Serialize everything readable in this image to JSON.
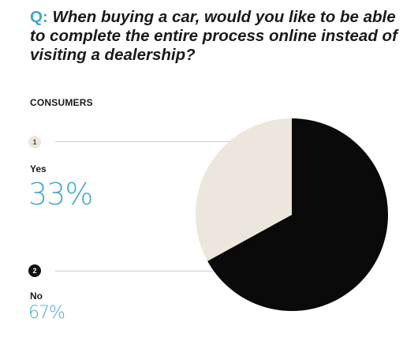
{
  "question": {
    "prefix": "Q:",
    "text": " When buying a car, would you like to be able to complete the entire process online instead of visiting a dealership?"
  },
  "section_label": "CONSUMERS",
  "colors": {
    "accent": "#3fa7c9",
    "yes": "#ece6dc",
    "no": "#0a0a0a"
  },
  "chart_data": {
    "type": "pie",
    "categories": [
      "Yes",
      "No"
    ],
    "values": [
      33,
      67
    ],
    "labels": [
      "33%",
      "67%"
    ],
    "markers": [
      "1",
      "2"
    ],
    "colors": [
      "#ece6dc",
      "#0a0a0a"
    ]
  }
}
